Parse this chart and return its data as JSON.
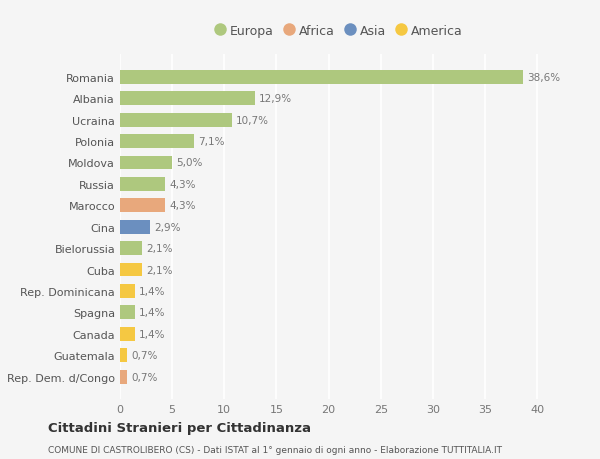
{
  "countries": [
    "Romania",
    "Albania",
    "Ucraina",
    "Polonia",
    "Moldova",
    "Russia",
    "Marocco",
    "Cina",
    "Bielorussia",
    "Cuba",
    "Rep. Dominicana",
    "Spagna",
    "Canada",
    "Guatemala",
    "Rep. Dem. d/Congo"
  ],
  "values": [
    38.6,
    12.9,
    10.7,
    7.1,
    5.0,
    4.3,
    4.3,
    2.9,
    2.1,
    2.1,
    1.4,
    1.4,
    1.4,
    0.7,
    0.7
  ],
  "labels": [
    "38,6%",
    "12,9%",
    "10,7%",
    "7,1%",
    "5,0%",
    "4,3%",
    "4,3%",
    "2,9%",
    "2,1%",
    "2,1%",
    "1,4%",
    "1,4%",
    "1,4%",
    "0,7%",
    "0,7%"
  ],
  "continents": [
    "Europa",
    "Europa",
    "Europa",
    "Europa",
    "Europa",
    "Europa",
    "Africa",
    "Asia",
    "Europa",
    "America",
    "America",
    "Europa",
    "America",
    "America",
    "Africa"
  ],
  "continent_colors": {
    "Europa": "#aec87e",
    "Africa": "#e8a87c",
    "Asia": "#6b8fbf",
    "America": "#f5c842"
  },
  "legend_order": [
    "Europa",
    "Africa",
    "Asia",
    "America"
  ],
  "bg_color": "#f5f5f5",
  "plot_bg_color": "#f5f5f5",
  "grid_color": "#ffffff",
  "label_color": "#888888",
  "title": "Cittadini Stranieri per Cittadinanza",
  "subtitle": "COMUNE DI CASTROLIBERO (CS) - Dati ISTAT al 1° gennaio di ogni anno - Elaborazione TUTTITALIA.IT",
  "xlim": [
    0,
    42
  ],
  "xticks": [
    0,
    5,
    10,
    15,
    20,
    25,
    30,
    35,
    40
  ]
}
